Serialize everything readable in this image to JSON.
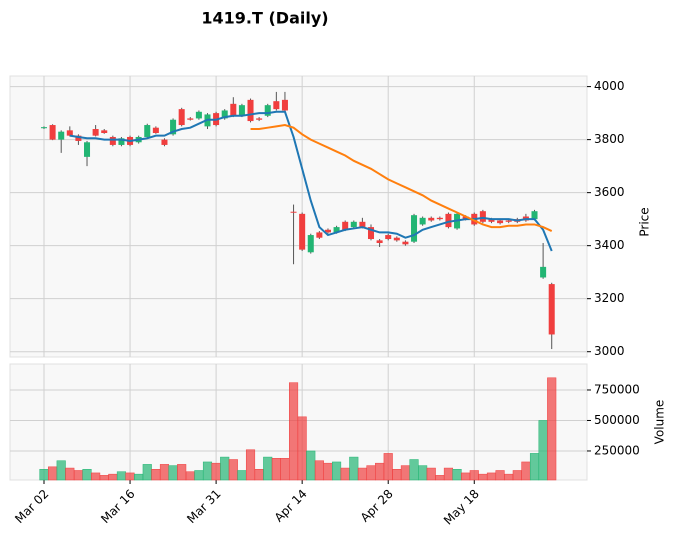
{
  "chart_data": {
    "type": "candlestick",
    "title": "1419.T (Daily)",
    "ylabel": "Price",
    "up_color": "#22b573",
    "down_color": "#f03e3e",
    "grid": true,
    "xlim": [
      -3.95,
      63.1
    ],
    "xticks": [
      {
        "value": 0,
        "label": "Mar 02"
      },
      {
        "value": 10,
        "label": "Mar 16"
      },
      {
        "value": 20,
        "label": "Mar 31"
      },
      {
        "value": 30,
        "label": "Apr 14"
      },
      {
        "value": 40,
        "label": "Apr 28"
      },
      {
        "value": 50,
        "label": "May 18"
      }
    ],
    "ylim": [
      2980,
      4040
    ],
    "yticks": [
      3000,
      3200,
      3400,
      3600,
      3800,
      4000
    ],
    "open": [
      3843,
      3855,
      3800,
      3835,
      3815,
      3735,
      3840,
      3835,
      3810,
      3780,
      3810,
      3790,
      3810,
      3845,
      3800,
      3820,
      3915,
      3880,
      3880,
      3850,
      3900,
      3880,
      3935,
      3890,
      3950,
      3880,
      3890,
      3945,
      3950,
      3528,
      3520,
      3375,
      3450,
      3460,
      3450,
      3490,
      3470,
      3490,
      3470,
      3420,
      3440,
      3430,
      3415,
      3415,
      3480,
      3505,
      3505,
      3520,
      3465,
      3510,
      3520,
      3530,
      3500,
      3495,
      3495,
      3500,
      3510,
      3500,
      3280,
      3255
    ],
    "high": [
      3850,
      3858,
      3835,
      3850,
      3820,
      3795,
      3855,
      3840,
      3815,
      3810,
      3815,
      3815,
      3860,
      3850,
      3805,
      3880,
      3920,
      3885,
      3910,
      3900,
      3905,
      3915,
      3960,
      3935,
      3955,
      3885,
      3935,
      3980,
      3980,
      3555,
      3525,
      3445,
      3455,
      3465,
      3475,
      3495,
      3495,
      3505,
      3480,
      3425,
      3445,
      3435,
      3420,
      3520,
      3510,
      3510,
      3510,
      3525,
      3525,
      3515,
      3525,
      3535,
      3505,
      3500,
      3500,
      3505,
      3520,
      3535,
      3410,
      3260
    ],
    "low": [
      3840,
      3798,
      3750,
      3812,
      3780,
      3700,
      3812,
      3822,
      3775,
      3775,
      3775,
      3785,
      3805,
      3822,
      3775,
      3815,
      3850,
      3872,
      3875,
      3840,
      3850,
      3875,
      3885,
      3885,
      3865,
      3870,
      3885,
      3910,
      3905,
      3330,
      3380,
      3370,
      3425,
      3445,
      3445,
      3455,
      3465,
      3465,
      3420,
      3395,
      3420,
      3415,
      3400,
      3410,
      3475,
      3490,
      3495,
      3465,
      3460,
      3495,
      3475,
      3485,
      3485,
      3480,
      3485,
      3485,
      3490,
      3495,
      3275,
      3010
    ],
    "close": [
      3847,
      3800,
      3830,
      3815,
      3795,
      3790,
      3815,
      3825,
      3780,
      3805,
      3780,
      3810,
      3855,
      3825,
      3780,
      3875,
      3855,
      3875,
      3905,
      3895,
      3855,
      3910,
      3890,
      3930,
      3870,
      3875,
      3930,
      3915,
      3910,
      3525,
      3385,
      3440,
      3430,
      3450,
      3470,
      3460,
      3490,
      3470,
      3425,
      3410,
      3425,
      3420,
      3405,
      3515,
      3505,
      3495,
      3500,
      3470,
      3520,
      3500,
      3480,
      3490,
      3490,
      3485,
      3490,
      3490,
      3495,
      3530,
      3320,
      3065
    ],
    "moving_averages": [
      {
        "color": "#1f77b4",
        "values": [
          null,
          null,
          null,
          3815,
          3810,
          3805,
          3805,
          3800,
          3800,
          3800,
          3795,
          3800,
          3805,
          3815,
          3815,
          3830,
          3840,
          3845,
          3860,
          3875,
          3875,
          3885,
          3890,
          3890,
          3895,
          3900,
          3900,
          3905,
          3905,
          3810,
          3690,
          3570,
          3470,
          3440,
          3450,
          3460,
          3465,
          3470,
          3460,
          3450,
          3450,
          3445,
          3430,
          3440,
          3460,
          3470,
          3480,
          3490,
          3495,
          3500,
          3500,
          3505,
          3500,
          3500,
          3500,
          3495,
          3500,
          3500,
          3460,
          3380
        ]
      },
      {
        "color": "#ff7f0e",
        "values": [
          null,
          null,
          null,
          null,
          null,
          null,
          null,
          null,
          null,
          null,
          null,
          null,
          null,
          null,
          null,
          null,
          null,
          null,
          null,
          null,
          null,
          null,
          null,
          null,
          3840,
          3840,
          3845,
          3850,
          3855,
          3845,
          3820,
          3800,
          3785,
          3770,
          3755,
          3740,
          3720,
          3705,
          3690,
          3670,
          3650,
          3635,
          3620,
          3605,
          3590,
          3570,
          3555,
          3540,
          3525,
          3510,
          3495,
          3480,
          3470,
          3470,
          3475,
          3475,
          3480,
          3480,
          3470,
          3455
        ]
      }
    ],
    "volume": {
      "ylabel": "Volume",
      "ylim": [
        12000,
        963000
      ],
      "yticks": [
        250000,
        500000,
        750000
      ],
      "values": [
        100000,
        120000,
        170000,
        110000,
        90000,
        100000,
        70000,
        50000,
        60000,
        80000,
        70000,
        60000,
        140000,
        100000,
        140000,
        130000,
        140000,
        80000,
        90000,
        160000,
        150000,
        200000,
        180000,
        90000,
        260000,
        100000,
        200000,
        190000,
        190000,
        810000,
        530000,
        250000,
        170000,
        150000,
        160000,
        110000,
        200000,
        110000,
        130000,
        150000,
        230000,
        100000,
        130000,
        180000,
        130000,
        110000,
        50000,
        110000,
        100000,
        70000,
        90000,
        60000,
        70000,
        90000,
        60000,
        90000,
        160000,
        230000,
        500000,
        850000
      ]
    }
  }
}
